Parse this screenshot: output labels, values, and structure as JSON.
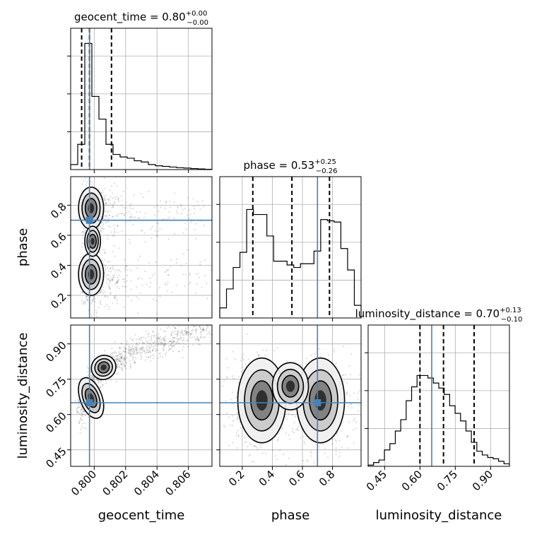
{
  "chart_data": {
    "type": "corner",
    "parameters": [
      {
        "name": "geocent_time",
        "range": [
          0.7985,
          0.8075
        ],
        "ticks": [
          "0.800",
          "0.802",
          "0.804",
          "0.806"
        ],
        "tick_values": [
          0.8,
          0.802,
          0.804,
          0.806
        ],
        "title_main": "geocent_time = 0.80",
        "title_sup": "+0.00",
        "title_sub": "−0.00",
        "median": 0.7997,
        "q_lo": 0.7992,
        "q_hi": 0.8011,
        "truth": 0.7997
      },
      {
        "name": "phase",
        "range": [
          0.05,
          0.99
        ],
        "ticks": [
          "0.2",
          "0.4",
          "0.6",
          "0.8"
        ],
        "tick_values": [
          0.2,
          0.4,
          0.6,
          0.8
        ],
        "title_main": "phase = 0.53",
        "title_sup": "+0.25",
        "title_sub": "−0.26",
        "median": 0.53,
        "q_lo": 0.27,
        "q_hi": 0.78,
        "truth": 0.7
      },
      {
        "name": "luminosity_distance",
        "range": [
          0.38,
          0.98
        ],
        "ticks": [
          "0.45",
          "0.60",
          "0.75",
          "0.90"
        ],
        "tick_values": [
          0.45,
          0.6,
          0.75,
          0.9
        ],
        "title_main": "luminosity_distance = 0.70",
        "title_sup": "+0.13",
        "title_sub": "−0.10",
        "median": 0.7,
        "q_lo": 0.6,
        "q_hi": 0.83,
        "truth": 0.65
      }
    ],
    "histograms": {
      "geocent_time": [
        0.04,
        0.2,
        1.0,
        0.58,
        0.4,
        0.2,
        0.12,
        0.1,
        0.09,
        0.07,
        0.06,
        0.04,
        0.03,
        0.025,
        0.02,
        0.015,
        0.012,
        0.008,
        0.005,
        0.002
      ],
      "phase": [
        0.08,
        0.23,
        0.4,
        0.52,
        0.86,
        0.82,
        0.82,
        0.65,
        0.45,
        0.45,
        0.42,
        0.4,
        0.43,
        0.43,
        0.53,
        0.78,
        0.77,
        0.76,
        0.55,
        0.38,
        0.1
      ],
      "luminosity_distance": [
        0.01,
        0.03,
        0.05,
        0.13,
        0.18,
        0.28,
        0.37,
        0.52,
        0.63,
        0.72,
        0.72,
        0.7,
        0.66,
        0.62,
        0.57,
        0.48,
        0.42,
        0.36,
        0.28,
        0.19,
        0.12,
        0.09,
        0.07,
        0.06,
        0.04,
        0.02
      ]
    },
    "hist_ylim": 1.12,
    "grid": true
  }
}
